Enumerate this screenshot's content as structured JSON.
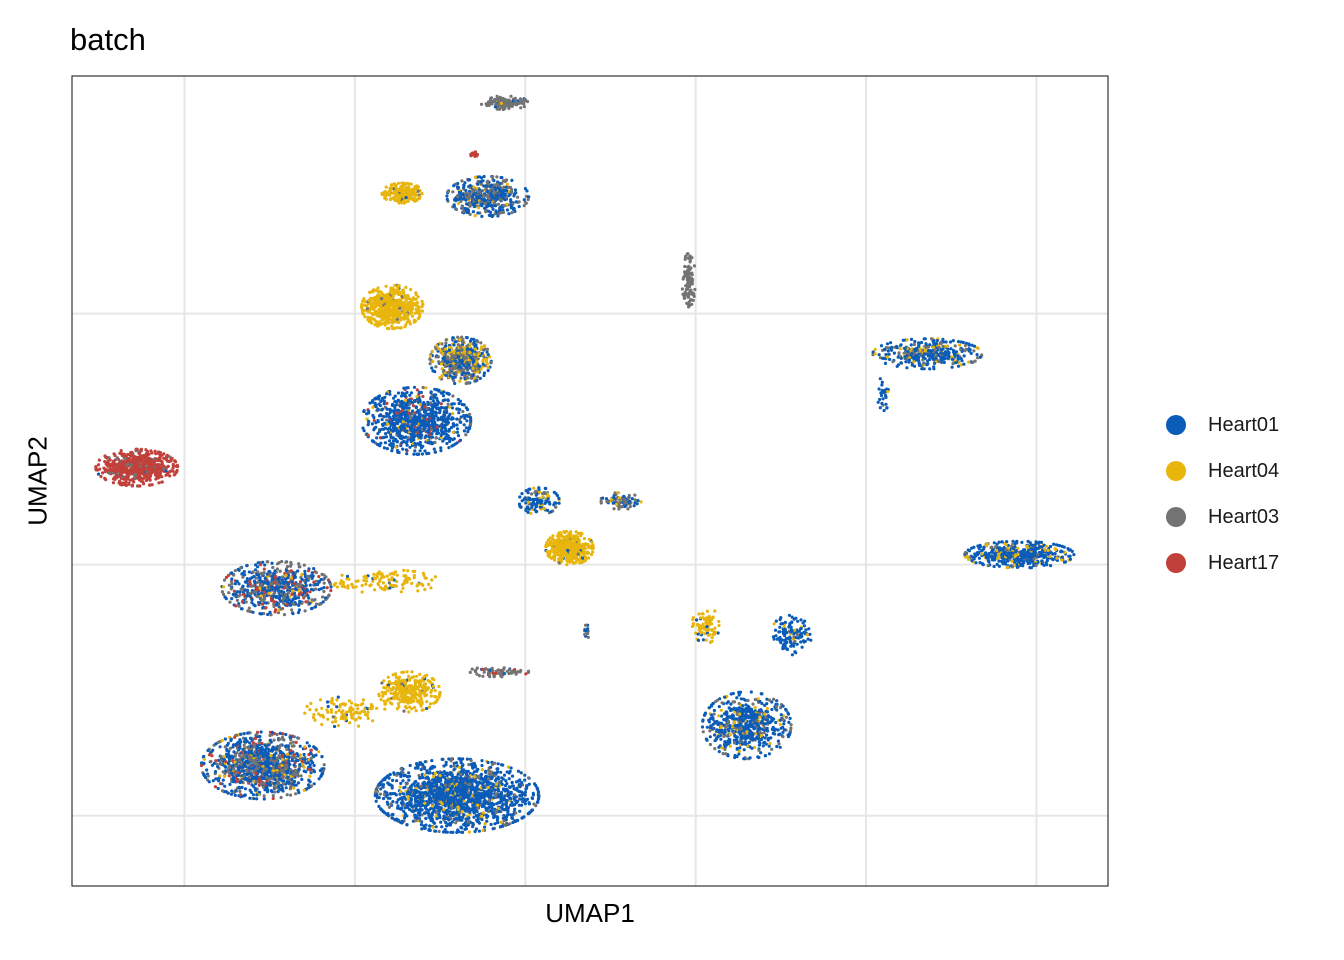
{
  "chart_data": {
    "type": "scatter",
    "title": "batch",
    "xlabel": "UMAP1",
    "ylabel": "UMAP2",
    "xlim": [
      -10.8,
      19.6
    ],
    "ylim": [
      -12.1,
      12.1
    ],
    "x_gridlines": [
      -7.5,
      -2.5,
      2.5,
      7.5,
      12.5,
      17.5
    ],
    "y_gridlines": [
      -10,
      -2.5,
      5
    ],
    "grid": true,
    "tick_labels_shown": false,
    "legend": "right",
    "series": [
      {
        "name": "Heart01",
        "color": "#0b5cb8"
      },
      {
        "name": "Heart04",
        "color": "#e8b50c"
      },
      {
        "name": "Heart03",
        "color": "#737373"
      },
      {
        "name": "Heart17",
        "color": "#c2403b"
      }
    ],
    "clusters": [
      {
        "x": -8.9,
        "y": 0.4,
        "rx": 1.2,
        "ry": 0.55,
        "n": 600,
        "mix": [
          0.01,
          0,
          0.08,
          0.91
        ]
      },
      {
        "x": -0.7,
        "y": 1.8,
        "rx": 1.6,
        "ry": 1.0,
        "n": 900,
        "mix": [
          0.86,
          0.03,
          0.06,
          0.05
        ]
      },
      {
        "x": 0.6,
        "y": 3.6,
        "rx": 0.9,
        "ry": 0.7,
        "n": 520,
        "mix": [
          0.3,
          0.25,
          0.45,
          0
        ]
      },
      {
        "x": -1.4,
        "y": 5.2,
        "rx": 0.9,
        "ry": 0.65,
        "n": 520,
        "mix": [
          0,
          0.96,
          0.04,
          0
        ]
      },
      {
        "x": -1.1,
        "y": 8.6,
        "rx": 0.6,
        "ry": 0.3,
        "n": 200,
        "mix": [
          0.02,
          0.92,
          0.06,
          0
        ]
      },
      {
        "x": 1.4,
        "y": 8.5,
        "rx": 1.2,
        "ry": 0.6,
        "n": 450,
        "mix": [
          0.62,
          0.06,
          0.32,
          0
        ]
      },
      {
        "x": 1.9,
        "y": 11.3,
        "rx": 0.7,
        "ry": 0.2,
        "n": 120,
        "mix": [
          0.08,
          0.02,
          0.9,
          0
        ]
      },
      {
        "x": 1.0,
        "y": 9.75,
        "rx": 0.12,
        "ry": 0.1,
        "n": 15,
        "mix": [
          0,
          0,
          0,
          1
        ]
      },
      {
        "x": 3.8,
        "y": -2.0,
        "rx": 0.7,
        "ry": 0.5,
        "n": 420,
        "mix": [
          0.03,
          0.95,
          0.02,
          0
        ]
      },
      {
        "x": 2.9,
        "y": -0.6,
        "rx": 0.6,
        "ry": 0.4,
        "n": 120,
        "mix": [
          0.7,
          0.15,
          0.15,
          0
        ]
      },
      {
        "x": -4.8,
        "y": -3.2,
        "rx": 1.6,
        "ry": 0.8,
        "n": 650,
        "mix": [
          0.48,
          0.05,
          0.35,
          0.12
        ]
      },
      {
        "x": -1.6,
        "y": -3.0,
        "rx": 1.6,
        "ry": 0.35,
        "n": 120,
        "mix": [
          0.05,
          0.93,
          0.02,
          0
        ]
      },
      {
        "x": -5.2,
        "y": -8.5,
        "rx": 1.8,
        "ry": 1.0,
        "n": 1100,
        "mix": [
          0.55,
          0.05,
          0.33,
          0.07
        ]
      },
      {
        "x": -0.9,
        "y": -6.3,
        "rx": 0.9,
        "ry": 0.6,
        "n": 300,
        "mix": [
          0.03,
          0.95,
          0.02,
          0
        ]
      },
      {
        "x": -2.8,
        "y": -6.9,
        "rx": 1.2,
        "ry": 0.45,
        "n": 110,
        "mix": [
          0.05,
          0.93,
          0.02,
          0
        ]
      },
      {
        "x": 0.5,
        "y": -9.4,
        "rx": 2.4,
        "ry": 1.1,
        "n": 1600,
        "mix": [
          0.83,
          0.06,
          0.11,
          0
        ]
      },
      {
        "x": 1.7,
        "y": -5.7,
        "rx": 0.9,
        "ry": 0.15,
        "n": 70,
        "mix": [
          0.1,
          0,
          0.75,
          0.15
        ]
      },
      {
        "x": 4.3,
        "y": -4.5,
        "rx": 0.1,
        "ry": 0.2,
        "n": 15,
        "mix": [
          0.5,
          0,
          0.5,
          0
        ]
      },
      {
        "x": 5.3,
        "y": -0.6,
        "rx": 0.6,
        "ry": 0.25,
        "n": 90,
        "mix": [
          0.35,
          0.1,
          0.55,
          0
        ]
      },
      {
        "x": 7.3,
        "y": 6.0,
        "rx": 0.2,
        "ry": 0.8,
        "n": 110,
        "mix": [
          0,
          0,
          1,
          0
        ]
      },
      {
        "x": 14.3,
        "y": 3.8,
        "rx": 1.6,
        "ry": 0.45,
        "n": 380,
        "mix": [
          0.7,
          0.12,
          0.18,
          0
        ]
      },
      {
        "x": 13.0,
        "y": 2.6,
        "rx": 0.2,
        "ry": 0.5,
        "n": 30,
        "mix": [
          0.7,
          0.2,
          0.1,
          0
        ]
      },
      {
        "x": 17.0,
        "y": -2.2,
        "rx": 1.6,
        "ry": 0.4,
        "n": 480,
        "mix": [
          0.72,
          0.18,
          0.1,
          0
        ]
      },
      {
        "x": 9.0,
        "y": -7.3,
        "rx": 1.3,
        "ry": 1.0,
        "n": 620,
        "mix": [
          0.76,
          0.09,
          0.15,
          0.01
        ]
      },
      {
        "x": 10.3,
        "y": -4.6,
        "rx": 0.6,
        "ry": 0.6,
        "n": 120,
        "mix": [
          0.86,
          0.08,
          0.06,
          0
        ]
      },
      {
        "x": 7.8,
        "y": -4.3,
        "rx": 0.4,
        "ry": 0.55,
        "n": 90,
        "mix": [
          0.15,
          0.85,
          0,
          0
        ]
      }
    ]
  }
}
